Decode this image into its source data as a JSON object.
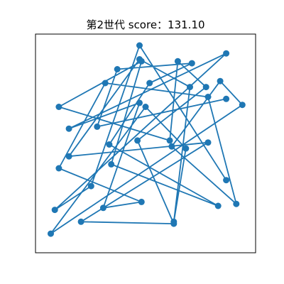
{
  "chart_data": {
    "type": "line",
    "title": "第2世代 score：131.10",
    "xlabel": "",
    "ylabel": "",
    "xlim": [
      0,
      100
    ],
    "ylim": [
      0,
      100
    ],
    "grid": false,
    "series": [
      {
        "color": "#1f77b4",
        "points": [
          {
            "x": 90,
            "y": 32
          },
          {
            "x": 47,
            "y": 100
          },
          {
            "x": 23,
            "y": 29
          },
          {
            "x": 5,
            "y": 17
          },
          {
            "x": 90,
            "y": 96
          },
          {
            "x": 12,
            "y": 58
          },
          {
            "x": 47,
            "y": 71
          },
          {
            "x": 29,
            "y": 18
          },
          {
            "x": 48,
            "y": 21
          },
          {
            "x": 7,
            "y": 38
          },
          {
            "x": 30,
            "y": 81
          },
          {
            "x": 81,
            "y": 74
          },
          {
            "x": 95,
            "y": 20
          },
          {
            "x": 63,
            "y": 49
          },
          {
            "x": 87,
            "y": 82
          },
          {
            "x": 98,
            "y": 70
          },
          {
            "x": 3,
            "y": 5
          },
          {
            "x": 50,
            "y": 69
          },
          {
            "x": 70,
            "y": 48
          },
          {
            "x": 64,
            "y": 11
          },
          {
            "x": 72,
            "y": 79
          },
          {
            "x": 47,
            "y": 93
          },
          {
            "x": 12,
            "y": 44
          },
          {
            "x": 81,
            "y": 51
          },
          {
            "x": 18,
            "y": 11
          },
          {
            "x": 64,
            "y": 10
          },
          {
            "x": 46,
            "y": 52
          },
          {
            "x": 80,
            "y": 79
          },
          {
            "x": 66,
            "y": 92
          },
          {
            "x": 62,
            "y": 52
          },
          {
            "x": 7,
            "y": 69
          },
          {
            "x": 48,
            "y": 92
          },
          {
            "x": 33,
            "y": 40
          },
          {
            "x": 86,
            "y": 19
          },
          {
            "x": 32,
            "y": 50
          },
          {
            "x": 52,
            "y": 81
          },
          {
            "x": 73,
            "y": 91
          },
          {
            "x": 36,
            "y": 88
          },
          {
            "x": 26,
            "y": 59
          },
          {
            "x": 90,
            "y": 73
          }
        ]
      }
    ]
  }
}
